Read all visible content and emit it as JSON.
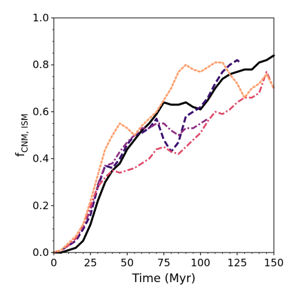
{
  "chart_data": {
    "type": "line",
    "title": "",
    "xlabel": "Time (Myr)",
    "ylabel": {
      "main": "f",
      "sub": "CNM, ISM"
    },
    "xlim": [
      0,
      150
    ],
    "ylim": [
      0.0,
      1.0
    ],
    "xticks": [
      0,
      25,
      50,
      75,
      100,
      125,
      150
    ],
    "xtick_labels": [
      "0",
      "25",
      "50",
      "75",
      "100",
      "125",
      "150"
    ],
    "yticks": [
      0.0,
      0.2,
      0.4,
      0.6,
      0.8,
      1.0
    ],
    "ytick_labels": [
      "0.0",
      "0.2",
      "0.4",
      "0.6",
      "0.8",
      "1.0"
    ],
    "grid": false,
    "legend": "none",
    "series": [
      {
        "color": "#000000",
        "style": "solid",
        "points": [
          [
            0,
            0.0
          ],
          [
            5,
            0.0
          ],
          [
            10,
            0.01
          ],
          [
            15,
            0.02
          ],
          [
            20,
            0.05
          ],
          [
            25,
            0.12
          ],
          [
            30,
            0.22
          ],
          [
            35,
            0.3
          ],
          [
            40,
            0.35
          ],
          [
            45,
            0.38
          ],
          [
            50,
            0.44
          ],
          [
            55,
            0.48
          ],
          [
            60,
            0.52
          ],
          [
            65,
            0.55
          ],
          [
            70,
            0.59
          ],
          [
            75,
            0.64
          ],
          [
            80,
            0.63
          ],
          [
            85,
            0.63
          ],
          [
            90,
            0.64
          ],
          [
            95,
            0.62
          ],
          [
            100,
            0.61
          ],
          [
            105,
            0.65
          ],
          [
            110,
            0.7
          ],
          [
            115,
            0.74
          ],
          [
            120,
            0.76
          ],
          [
            125,
            0.77
          ],
          [
            130,
            0.78
          ],
          [
            135,
            0.78
          ],
          [
            140,
            0.81
          ],
          [
            145,
            0.82
          ],
          [
            150,
            0.84
          ]
        ]
      },
      {
        "color": "#3b0f6f",
        "style": "dashed",
        "points": [
          [
            0,
            0.0
          ],
          [
            5,
            0.01
          ],
          [
            10,
            0.03
          ],
          [
            15,
            0.05
          ],
          [
            20,
            0.1
          ],
          [
            25,
            0.16
          ],
          [
            30,
            0.28
          ],
          [
            35,
            0.37
          ],
          [
            40,
            0.36
          ],
          [
            45,
            0.4
          ],
          [
            50,
            0.46
          ],
          [
            55,
            0.5
          ],
          [
            60,
            0.51
          ],
          [
            65,
            0.53
          ],
          [
            70,
            0.57
          ],
          [
            75,
            0.48
          ],
          [
            80,
            0.43
          ],
          [
            85,
            0.47
          ],
          [
            90,
            0.58
          ],
          [
            95,
            0.6
          ],
          [
            100,
            0.62
          ],
          [
            105,
            0.66
          ],
          [
            110,
            0.72
          ],
          [
            115,
            0.77
          ],
          [
            120,
            0.8
          ],
          [
            125,
            0.82
          ],
          [
            127,
            0.81
          ]
        ]
      },
      {
        "color": "#8c2981",
        "style": "dashdot",
        "points": [
          [
            0,
            0.0
          ],
          [
            5,
            0.01
          ],
          [
            10,
            0.03
          ],
          [
            15,
            0.06
          ],
          [
            20,
            0.11
          ],
          [
            25,
            0.18
          ],
          [
            30,
            0.29
          ],
          [
            35,
            0.37
          ],
          [
            40,
            0.38
          ],
          [
            45,
            0.43
          ],
          [
            50,
            0.47
          ],
          [
            55,
            0.5
          ],
          [
            60,
            0.53
          ],
          [
            65,
            0.53
          ],
          [
            70,
            0.55
          ],
          [
            75,
            0.55
          ],
          [
            80,
            0.52
          ],
          [
            85,
            0.5
          ],
          [
            90,
            0.53
          ],
          [
            95,
            0.53
          ],
          [
            100,
            0.55
          ],
          [
            105,
            0.57
          ]
        ]
      },
      {
        "color": "#de4968",
        "style": "dashdot",
        "points": [
          [
            0,
            0.0
          ],
          [
            5,
            0.01
          ],
          [
            10,
            0.03
          ],
          [
            15,
            0.06
          ],
          [
            20,
            0.12
          ],
          [
            25,
            0.2
          ],
          [
            30,
            0.28
          ],
          [
            35,
            0.32
          ],
          [
            40,
            0.35
          ],
          [
            45,
            0.34
          ],
          [
            50,
            0.35
          ],
          [
            55,
            0.36
          ],
          [
            60,
            0.38
          ],
          [
            65,
            0.4
          ],
          [
            70,
            0.44
          ],
          [
            75,
            0.45
          ],
          [
            80,
            0.43
          ],
          [
            85,
            0.42
          ],
          [
            90,
            0.45
          ],
          [
            95,
            0.48
          ],
          [
            100,
            0.51
          ],
          [
            105,
            0.56
          ],
          [
            110,
            0.6
          ],
          [
            115,
            0.59
          ],
          [
            120,
            0.61
          ],
          [
            125,
            0.64
          ],
          [
            130,
            0.66
          ],
          [
            135,
            0.66
          ],
          [
            140,
            0.68
          ],
          [
            145,
            0.77
          ],
          [
            150,
            0.7
          ]
        ]
      },
      {
        "color": "#fe9f6d",
        "style": "dotted",
        "points": [
          [
            0,
            0.0
          ],
          [
            5,
            0.01
          ],
          [
            10,
            0.04
          ],
          [
            15,
            0.07
          ],
          [
            20,
            0.12
          ],
          [
            25,
            0.22
          ],
          [
            30,
            0.33
          ],
          [
            35,
            0.44
          ],
          [
            40,
            0.5
          ],
          [
            45,
            0.55
          ],
          [
            50,
            0.53
          ],
          [
            55,
            0.5
          ],
          [
            60,
            0.54
          ],
          [
            65,
            0.57
          ],
          [
            70,
            0.6
          ],
          [
            75,
            0.65
          ],
          [
            80,
            0.7
          ],
          [
            85,
            0.77
          ],
          [
            90,
            0.8
          ],
          [
            95,
            0.78
          ],
          [
            100,
            0.77
          ],
          [
            105,
            0.79
          ],
          [
            110,
            0.81
          ],
          [
            115,
            0.81
          ],
          [
            120,
            0.76
          ],
          [
            125,
            0.72
          ],
          [
            130,
            0.66
          ],
          [
            135,
            0.7
          ],
          [
            140,
            0.72
          ],
          [
            145,
            0.76
          ],
          [
            150,
            0.7
          ]
        ]
      }
    ]
  }
}
